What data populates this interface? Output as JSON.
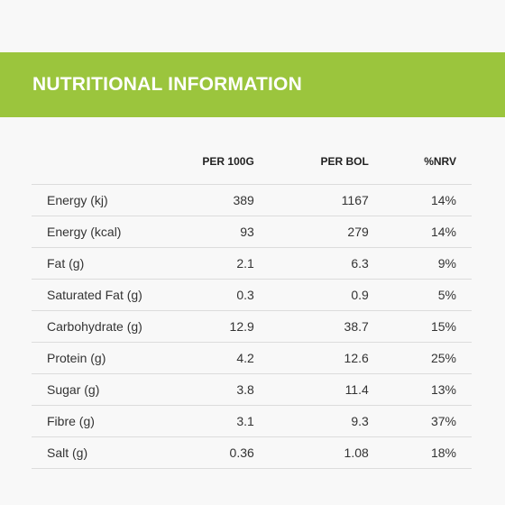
{
  "banner": {
    "title": "NUTRITIONAL INFORMATION"
  },
  "table": {
    "headers": [
      "",
      "PER 100G",
      "PER BOL",
      "%NRV"
    ],
    "rows": [
      {
        "name": "Energy (kj)",
        "per_100g": "389",
        "per_bol": "1167",
        "nrv": "14%"
      },
      {
        "name": "Energy (kcal)",
        "per_100g": "93",
        "per_bol": "279",
        "nrv": "14%"
      },
      {
        "name": "Fat (g)",
        "per_100g": "2.1",
        "per_bol": "6.3",
        "nrv": "9%"
      },
      {
        "name": "Saturated Fat (g)",
        "per_100g": "0.3",
        "per_bol": "0.9",
        "nrv": "5%"
      },
      {
        "name": "Carbohydrate (g)",
        "per_100g": "12.9",
        "per_bol": "38.7",
        "nrv": "15%"
      },
      {
        "name": "Protein (g)",
        "per_100g": "4.2",
        "per_bol": "12.6",
        "nrv": "25%"
      },
      {
        "name": "Sugar (g)",
        "per_100g": "3.8",
        "per_bol": "11.4",
        "nrv": "13%"
      },
      {
        "name": "Fibre (g)",
        "per_100g": "3.1",
        "per_bol": "9.3",
        "nrv": "37%"
      },
      {
        "name": "Salt (g)",
        "per_100g": "0.36",
        "per_bol": "1.08",
        "nrv": "18%"
      }
    ]
  },
  "colors": {
    "banner": "#9bc53d",
    "banner_text": "#ffffff",
    "background": "#f8f8f8",
    "divider": "#dcdcdc"
  }
}
